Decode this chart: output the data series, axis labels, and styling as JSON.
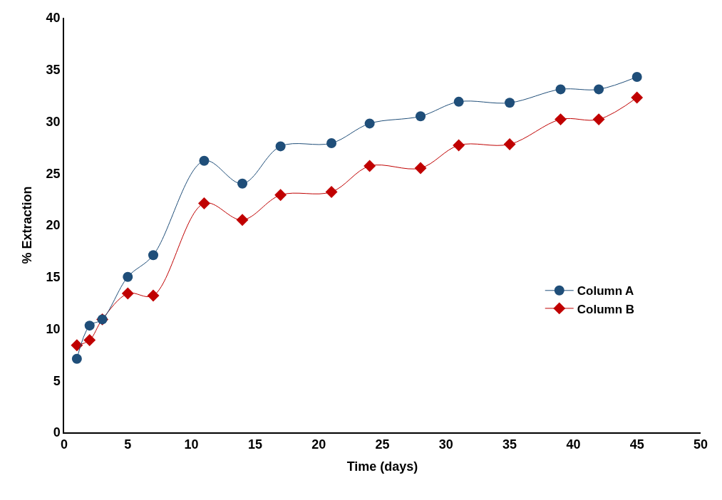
{
  "chart_data": {
    "type": "line",
    "xlabel": "Time (days)",
    "ylabel": "% Extraction",
    "x": [
      1,
      2,
      3,
      5,
      7,
      11,
      14,
      17,
      21,
      24,
      28,
      31,
      35,
      39,
      42,
      45
    ],
    "series": [
      {
        "name": "Column A",
        "color": "#1f4e79",
        "marker": "circle",
        "values": [
          7.1,
          10.3,
          10.9,
          15.0,
          17.1,
          26.2,
          24.0,
          27.6,
          27.9,
          29.8,
          30.5,
          31.9,
          31.8,
          33.1,
          33.1,
          34.3
        ]
      },
      {
        "name": "Column B",
        "color": "#c00000",
        "marker": "diamond",
        "values": [
          8.4,
          8.9,
          10.9,
          13.4,
          13.2,
          22.1,
          20.5,
          22.9,
          23.2,
          25.7,
          25.5,
          27.7,
          27.8,
          30.2,
          30.2,
          32.3
        ]
      }
    ],
    "xlim": [
      0,
      50
    ],
    "xticks": [
      0,
      5,
      10,
      15,
      20,
      25,
      30,
      35,
      40,
      45,
      50
    ],
    "ylim": [
      0,
      40
    ],
    "yticks": [
      0,
      5,
      10,
      15,
      20,
      25,
      30,
      35,
      40
    ],
    "grid": false,
    "legend": "right",
    "line_style": "solid"
  }
}
